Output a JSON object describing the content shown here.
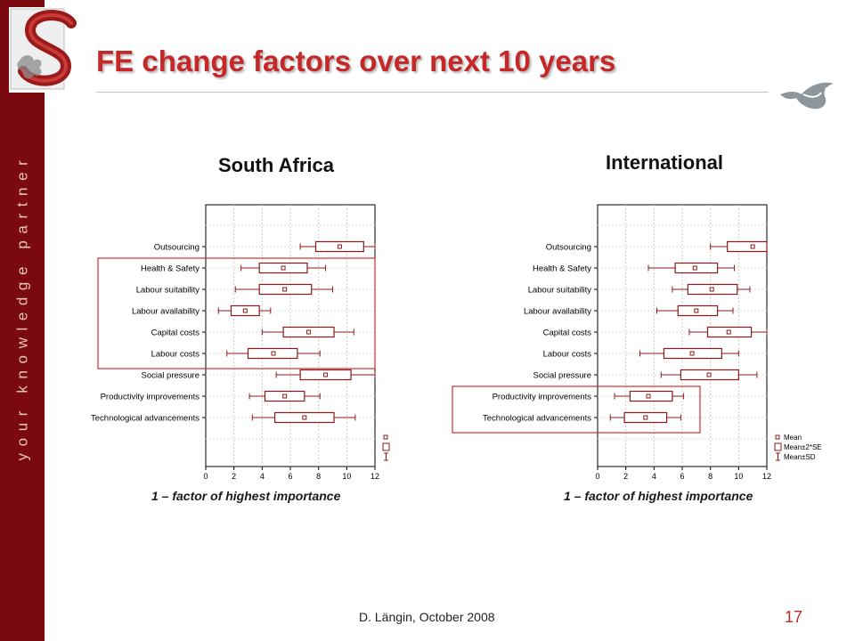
{
  "slide": {
    "title": "FE change factors over next 10 years",
    "tagline": "your knowledge partner",
    "footer": "D. Längin, October 2008",
    "page_number": "17",
    "colors": {
      "sidebar": "#7a0a10",
      "title": "#c62828",
      "box": "#8b1a1a",
      "highlight": "#d32f2f"
    },
    "icons": [
      "university-logo-icon",
      "fish-logo-icon"
    ]
  },
  "chart_data": [
    {
      "type": "boxplot",
      "title": "South Africa",
      "caption": "1 – factor of highest importance",
      "xlim": [
        0,
        12
      ],
      "xticks": [
        0,
        2,
        4,
        6,
        8,
        10,
        12
      ],
      "grid": true,
      "legend": [
        "Mean",
        "Mean±2*SE",
        "Mean±SD"
      ],
      "legend_position": "bottom-right",
      "highlighted_categories": [
        "Health & Safety",
        "Labour suitability",
        "Labour availability",
        "Capital costs",
        "Labour costs"
      ],
      "categories": [
        "Outsourcing",
        "Health & Safety",
        "Labour suitability",
        "Labour availability",
        "Capital costs",
        "Labour costs",
        "Social pressure",
        "Productivity improvements",
        "Technological advancements"
      ],
      "mean": [
        9.5,
        5.5,
        5.6,
        2.8,
        7.3,
        4.8,
        8.5,
        5.6,
        7.0
      ],
      "se2_low": [
        7.8,
        3.8,
        3.8,
        1.8,
        5.5,
        3.0,
        6.7,
        4.2,
        4.9
      ],
      "se2_high": [
        11.2,
        7.2,
        7.5,
        3.8,
        9.1,
        6.5,
        10.3,
        7.0,
        9.1
      ],
      "sd_low": [
        6.7,
        2.5,
        2.1,
        0.9,
        4.0,
        1.5,
        5.0,
        3.1,
        3.3
      ],
      "sd_high": [
        12.0,
        8.5,
        9.0,
        4.6,
        10.5,
        8.1,
        12.0,
        8.1,
        10.6
      ]
    },
    {
      "type": "boxplot",
      "title": "International",
      "caption": "1 – factor of highest importance",
      "xlim": [
        0,
        12
      ],
      "xticks": [
        0,
        2,
        4,
        6,
        8,
        10,
        12
      ],
      "grid": true,
      "legend": [
        "Mean",
        "Mean±2*SE",
        "Mean±SD"
      ],
      "legend_position": "bottom-right",
      "highlighted_categories": [
        "Productivity improvements",
        "Technological advancements"
      ],
      "categories": [
        "Outsourcing",
        "Health & Safety",
        "Labour suitability",
        "Labour availability",
        "Capital costs",
        "Labour costs",
        "Social pressure",
        "Productivity improvements",
        "Technological advancements"
      ],
      "mean": [
        11.0,
        6.9,
        8.1,
        7.0,
        9.3,
        6.7,
        7.9,
        3.6,
        3.4
      ],
      "se2_low": [
        9.2,
        5.5,
        6.4,
        5.7,
        7.8,
        4.7,
        5.9,
        2.3,
        1.9
      ],
      "se2_high": [
        12.0,
        8.5,
        9.9,
        8.5,
        10.9,
        8.8,
        10.0,
        5.3,
        4.9
      ],
      "sd_low": [
        8.0,
        3.6,
        5.3,
        4.2,
        6.5,
        3.0,
        4.5,
        1.2,
        0.9
      ],
      "sd_high": [
        12.0,
        9.7,
        10.8,
        9.6,
        12.0,
        10.0,
        11.3,
        6.1,
        5.9
      ]
    }
  ]
}
